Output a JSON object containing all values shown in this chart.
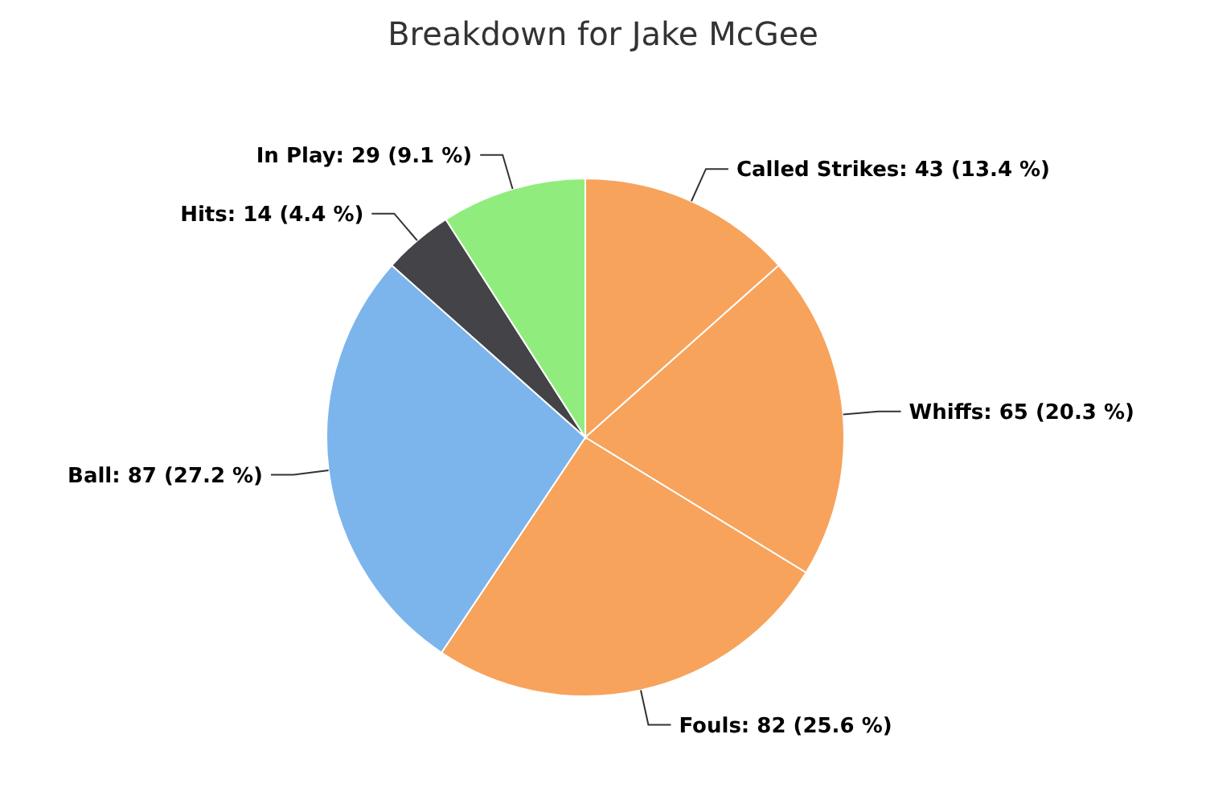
{
  "chart_data": {
    "type": "pie",
    "title": "Breakdown for Jake McGee",
    "categories": [
      "Called Strikes",
      "Whiffs",
      "Fouls",
      "Ball",
      "Hits",
      "In Play"
    ],
    "values": [
      43,
      65,
      82,
      87,
      14,
      29
    ],
    "value_labels": [
      "43 (13.4 %)",
      "65 (20.3 %)",
      "82 (25.6 %)",
      "87 (27.2 %)",
      "14 (4.4 %)",
      "29 (9.1 %)"
    ],
    "colors": [
      "#f7a35c",
      "#f7a35c",
      "#f7a35c",
      "#7cb5ec",
      "#434348",
      "#90ed7d"
    ],
    "legend": false
  }
}
